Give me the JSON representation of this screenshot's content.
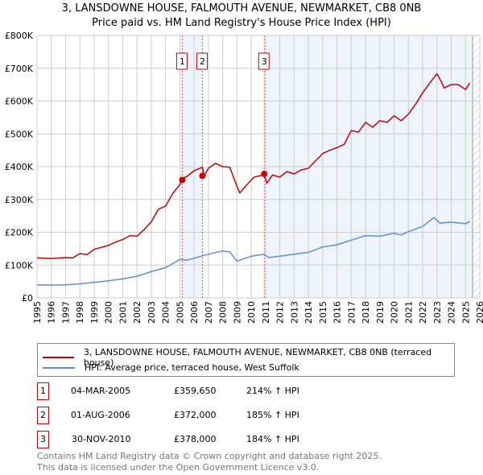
{
  "chart_data": {
    "type": "line",
    "title": "3, LANSDOWNE HOUSE, FALMOUTH AVENUE, NEWMARKET, CB8 0NB",
    "subtitle": "Price paid vs. HM Land Registry's House Price Index (HPI)",
    "xlim": [
      1995,
      2026
    ],
    "ylim": [
      0,
      800000
    ],
    "x_ticks": [
      "1995",
      "1996",
      "1997",
      "1998",
      "1999",
      "2000",
      "2001",
      "2002",
      "2003",
      "2004",
      "2005",
      "2006",
      "2007",
      "2008",
      "2009",
      "2010",
      "2011",
      "2012",
      "2013",
      "2014",
      "2015",
      "2016",
      "2017",
      "2018",
      "2019",
      "2020",
      "2021",
      "2022",
      "2023",
      "2024",
      "2025",
      "2026"
    ],
    "y_ticks": [
      {
        "v": 0,
        "l": "£0"
      },
      {
        "v": 100000,
        "l": "£100K"
      },
      {
        "v": 200000,
        "l": "£200K"
      },
      {
        "v": 300000,
        "l": "£300K"
      },
      {
        "v": 400000,
        "l": "£400K"
      },
      {
        "v": 500000,
        "l": "£500K"
      },
      {
        "v": 600000,
        "l": "£600K"
      },
      {
        "v": 700000,
        "l": "£700K"
      },
      {
        "v": 800000,
        "l": "£800K"
      }
    ],
    "grid": true,
    "series": [
      {
        "name": "3, LANSDOWNE HOUSE, FALMOUTH AVENUE, NEWMARKET, CB8 0NB (terraced house)",
        "color": "#cc0000",
        "x": [
          1995,
          1996,
          1997,
          1997.5,
          1998,
          1998.5,
          1999,
          2000,
          2000.5,
          2001,
          2001.5,
          2002,
          2002.5,
          2003,
          2003.5,
          2004,
          2004.5,
          2005,
          2005.2,
          2005.5,
          2006,
          2006.58,
          2006.7,
          2007,
          2007.5,
          2008,
          2008.5,
          2009,
          2009.2,
          2009.8,
          2010.2,
          2010.9,
          2011.1,
          2011.5,
          2012,
          2012.5,
          2013,
          2013.5,
          2014,
          2015,
          2015.5,
          2016,
          2016.5,
          2017,
          2017.5,
          2018,
          2018.5,
          2019,
          2019.5,
          2020,
          2020.5,
          2021,
          2021.5,
          2022,
          2022.5,
          2023,
          2023.3,
          2023.5,
          2024,
          2024.5,
          2025,
          2025.3
        ],
        "y": [
          122000,
          120000,
          123000,
          122000,
          135000,
          132000,
          148000,
          160000,
          170000,
          178000,
          190000,
          188000,
          208000,
          232000,
          270000,
          280000,
          318000,
          345000,
          365000,
          370000,
          388000,
          398000,
          372000,
          395000,
          410000,
          400000,
          398000,
          340000,
          320000,
          350000,
          368000,
          375000,
          350000,
          375000,
          368000,
          385000,
          378000,
          390000,
          395000,
          440000,
          450000,
          458000,
          468000,
          510000,
          505000,
          535000,
          520000,
          540000,
          535000,
          555000,
          540000,
          560000,
          590000,
          625000,
          655000,
          683000,
          660000,
          640000,
          650000,
          650000,
          635000,
          655000
        ]
      },
      {
        "name": "HPI: Average price, terraced house, West Suffolk",
        "color": "#5b8fd4",
        "x": [
          1995,
          1996,
          1997,
          1998,
          1999,
          2000,
          2001,
          2002,
          2003,
          2004,
          2005,
          2005.5,
          2006,
          2007,
          2008,
          2008.5,
          2009,
          2010,
          2010.9,
          2011.2,
          2012,
          2013,
          2014,
          2015,
          2016,
          2017,
          2018,
          2019,
          2020,
          2020.5,
          2021,
          2022,
          2022.8,
          2023.2,
          2024,
          2025,
          2025.3
        ],
        "y": [
          40000,
          39000,
          40000,
          43000,
          47000,
          52000,
          58000,
          66000,
          80000,
          92000,
          117000,
          115000,
          121000,
          133000,
          143000,
          140000,
          112000,
          127000,
          133000,
          123000,
          127000,
          133000,
          139000,
          155000,
          162000,
          176000,
          190000,
          188000,
          197000,
          192000,
          202000,
          218000,
          245000,
          228000,
          231000,
          226000,
          233000
        ]
      }
    ],
    "sales": [
      {
        "n": "1",
        "x": 2005.17,
        "date": "04-MAR-2005",
        "price": "£359,650",
        "value": 359650,
        "hpi": "214% ↑ HPI"
      },
      {
        "n": "2",
        "x": 2006.58,
        "date": "01-AUG-2006",
        "price": "£372,000",
        "value": 372000,
        "hpi": "185% ↑ HPI"
      },
      {
        "n": "3",
        "x": 2010.91,
        "date": "30-NOV-2010",
        "price": "£378,000",
        "value": 378000,
        "hpi": "184% ↑ HPI"
      }
    ],
    "data_end": 2025.5
  },
  "footer": [
    "Contains HM Land Registry data © Crown copyright and database right 2025.",
    "This data is licensed under the Open Government Licence v3.0."
  ]
}
